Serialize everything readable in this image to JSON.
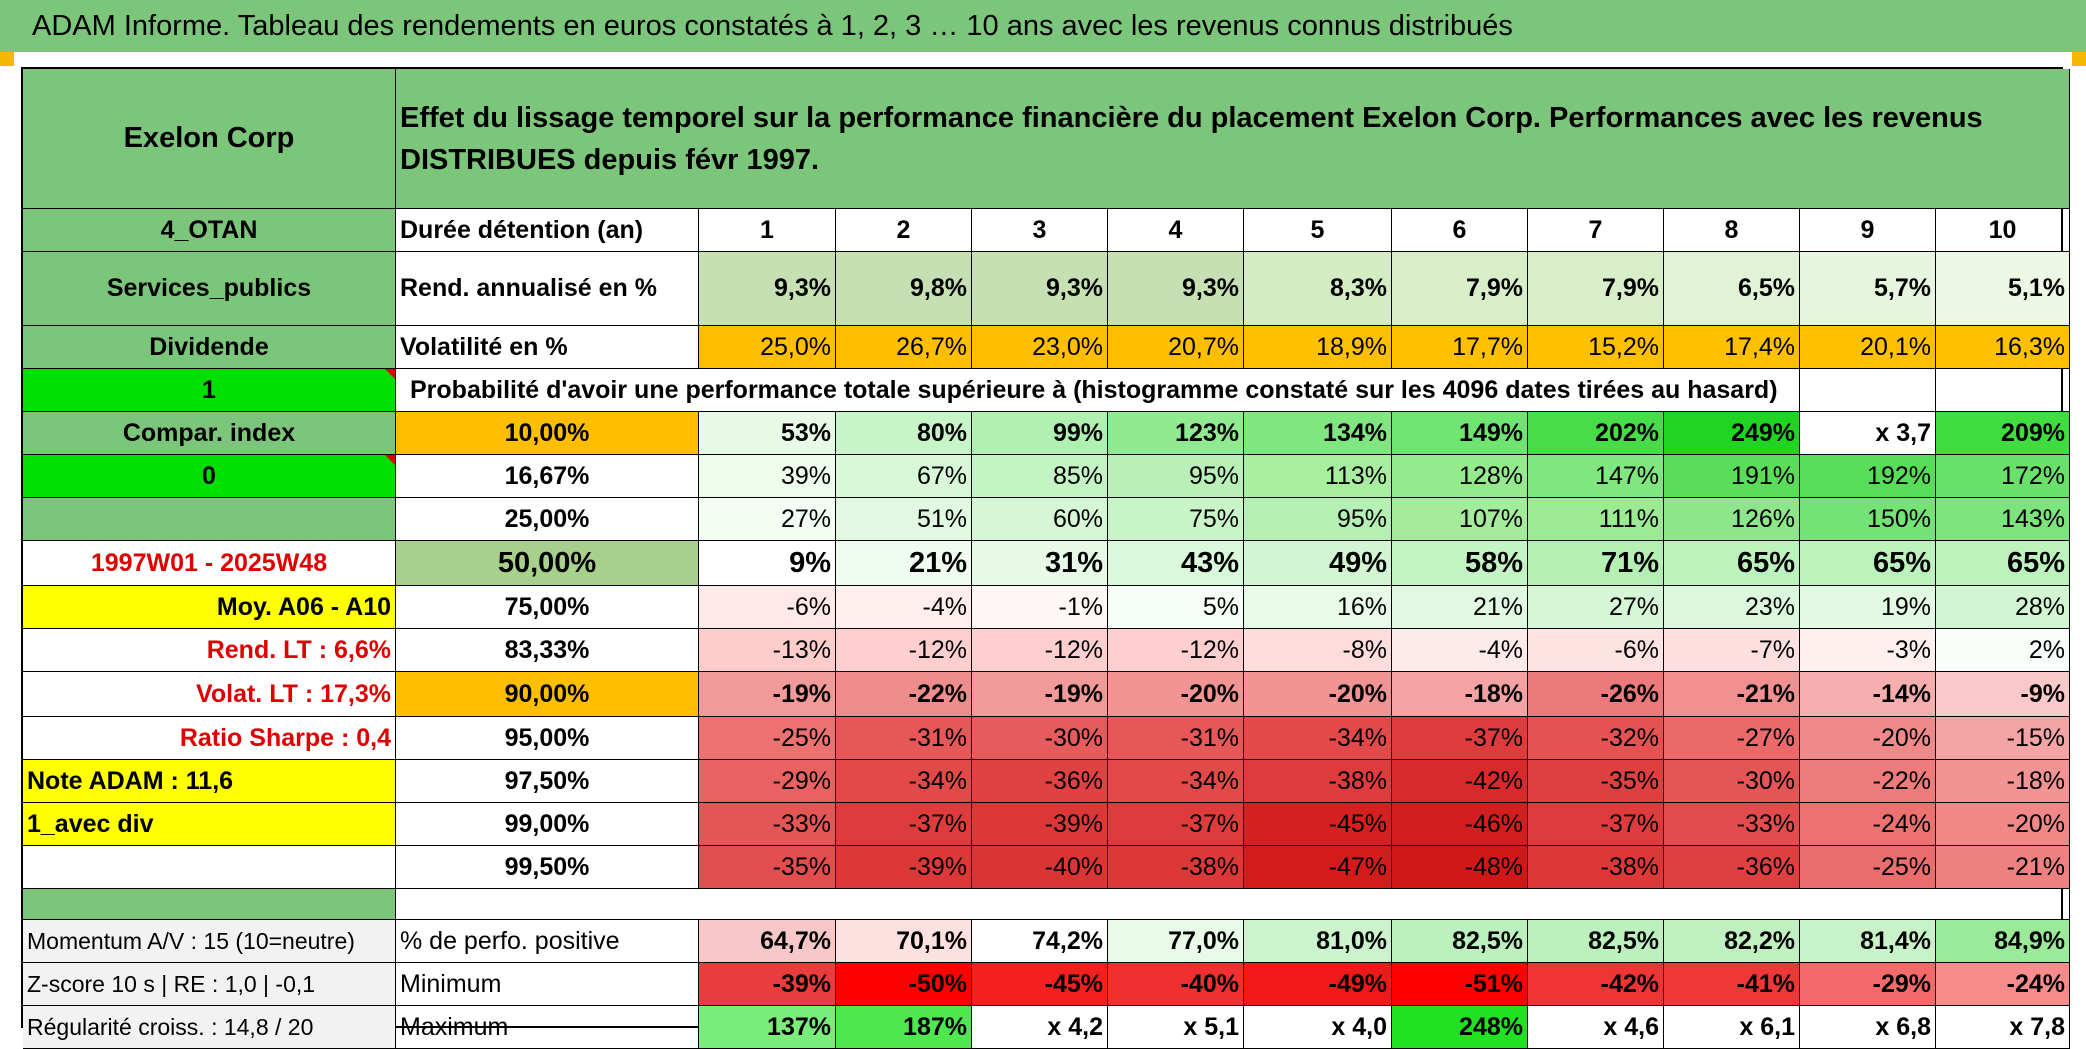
{
  "title": "ADAM Informe. Tableau des rendements en euros constatés à 1, 2, 3 … 10 ans avec les revenus connus distribués",
  "colors": {
    "header_green": "#7cc67c",
    "yellow": "#ffff00",
    "bright_green": "#00e000",
    "orange": "#ffbf00",
    "red_text": "#e00000"
  },
  "left": {
    "company": "Exelon Corp",
    "code": "4_OTAN",
    "sector": "Services_publics",
    "dividend_label": "Dividende",
    "option1": "1",
    "compar_label": "Compar. index",
    "option2": "0",
    "period": "1997W01 - 2025W48",
    "moy": "Moy. A06 - A10",
    "rend_lt": "Rend. LT :   6,6%",
    "volat_lt": "Volat. LT :   17,3%",
    "sharpe": "Ratio Sharpe :   0,4",
    "note": "Note ADAM : 11,6",
    "avec_div": "1_avec div",
    "momentum": "Momentum A/V : 15 (10=neutre)",
    "zscore": "Z-score 10 s | RE : 1,0 | -0,1",
    "regularite": "Régularité croiss. : 14,8 / 20"
  },
  "header_text": "Effet du lissage temporel sur la performance financière du placement Exelon Corp. Performances avec les revenus DISTRIBUES depuis févr 1997.",
  "duree_label": "Durée détention (an)",
  "years": [
    "1",
    "2",
    "3",
    "4",
    "5",
    "6",
    "7",
    "8",
    "9",
    "10"
  ],
  "rend_label": "Rend. annualisé en %",
  "rend": [
    "9,3%",
    "9,8%",
    "9,3%",
    "9,3%",
    "8,3%",
    "7,9%",
    "7,9%",
    "6,5%",
    "5,7%",
    "5,1%"
  ],
  "vol_label": "Volatilité en %",
  "vol": [
    "25,0%",
    "26,7%",
    "23,0%",
    "20,7%",
    "18,9%",
    "17,7%",
    "15,2%",
    "17,4%",
    "20,1%",
    "16,3%"
  ],
  "prob_label": "Probabilité d'avoir une performance totale supérieure à (histogramme constaté sur les 4096 dates tirées au hasard)",
  "prob_rows": [
    {
      "pct": "10,00%",
      "values": [
        "53%",
        "80%",
        "99%",
        "123%",
        "134%",
        "149%",
        "202%",
        "249%",
        "x 3,7",
        "209%"
      ]
    },
    {
      "pct": "16,67%",
      "values": [
        "39%",
        "67%",
        "85%",
        "95%",
        "113%",
        "128%",
        "147%",
        "191%",
        "192%",
        "172%"
      ]
    },
    {
      "pct": "25,00%",
      "values": [
        "27%",
        "51%",
        "60%",
        "75%",
        "95%",
        "107%",
        "111%",
        "126%",
        "150%",
        "143%"
      ]
    },
    {
      "pct": "50,00%",
      "values": [
        "9%",
        "21%",
        "31%",
        "43%",
        "49%",
        "58%",
        "71%",
        "65%",
        "65%",
        "65%"
      ]
    },
    {
      "pct": "75,00%",
      "values": [
        "-6%",
        "-4%",
        "-1%",
        "5%",
        "16%",
        "21%",
        "27%",
        "23%",
        "19%",
        "28%"
      ]
    },
    {
      "pct": "83,33%",
      "values": [
        "-13%",
        "-12%",
        "-12%",
        "-12%",
        "-8%",
        "-4%",
        "-6%",
        "-7%",
        "-3%",
        "2%"
      ]
    },
    {
      "pct": "90,00%",
      "values": [
        "-19%",
        "-22%",
        "-19%",
        "-20%",
        "-20%",
        "-18%",
        "-26%",
        "-21%",
        "-14%",
        "-9%"
      ]
    },
    {
      "pct": "95,00%",
      "values": [
        "-25%",
        "-31%",
        "-30%",
        "-31%",
        "-34%",
        "-37%",
        "-32%",
        "-27%",
        "-20%",
        "-15%"
      ]
    },
    {
      "pct": "97,50%",
      "values": [
        "-29%",
        "-34%",
        "-36%",
        "-34%",
        "-38%",
        "-42%",
        "-35%",
        "-30%",
        "-22%",
        "-18%"
      ]
    },
    {
      "pct": "99,00%",
      "values": [
        "-33%",
        "-37%",
        "-39%",
        "-37%",
        "-45%",
        "-46%",
        "-37%",
        "-33%",
        "-24%",
        "-20%"
      ]
    },
    {
      "pct": "99,50%",
      "values": [
        "-35%",
        "-39%",
        "-40%",
        "-38%",
        "-47%",
        "-48%",
        "-38%",
        "-36%",
        "-25%",
        "-21%"
      ]
    }
  ],
  "pos_label": "% de perfo. positive",
  "pos": [
    "64,7%",
    "70,1%",
    "74,2%",
    "77,0%",
    "81,0%",
    "82,5%",
    "82,5%",
    "82,2%",
    "81,4%",
    "84,9%"
  ],
  "min_label": "Minimum",
  "min": [
    "-39%",
    "-50%",
    "-45%",
    "-40%",
    "-49%",
    "-51%",
    "-42%",
    "-41%",
    "-29%",
    "-24%"
  ],
  "max_label": "Maximum",
  "max": [
    "137%",
    "187%",
    "x 4,2",
    "x 5,1",
    "x 4,0",
    "248%",
    "x 4,6",
    "x 6,1",
    "x 6,8",
    "x 7,8"
  ],
  "fills": {
    "rend": [
      "#c6e0b4",
      "#c6e0b4",
      "#c6e0b4",
      "#c6e0b4",
      "#d4ecc4",
      "#d8eec8",
      "#d8eec8",
      "#e2f2d6",
      "#e8f5de",
      "#ecf7e4"
    ],
    "vol": [
      "#ffbf00",
      "#ffbf00",
      "#ffbf00",
      "#ffbf00",
      "#ffc000",
      "#ffc000",
      "#ffc000",
      "#ffc000",
      "#ffc000",
      "#ffc000"
    ],
    "prob": [
      [
        "#e6fae6",
        "#c8f5c8",
        "#b0f0b0",
        "#90ea90",
        "#80e680",
        "#70e470",
        "#48dc48",
        "#22d422",
        "#ffffff",
        "#40dc40"
      ],
      [
        "#eefcee",
        "#d8f8d8",
        "#c4f4c4",
        "#b8f0b8",
        "#a8ee9f",
        "#94ea8c",
        "#80e680",
        "#5ade5a",
        "#58dd58",
        "#6ae26a"
      ],
      [
        "#f4fdf4",
        "#e0f9e0",
        "#d6f7d6",
        "#c8f4c8",
        "#b4f0b4",
        "#a4ec9c",
        "#9cea94",
        "#8ee68a",
        "#74e274",
        "#7ce47c"
      ],
      [
        "#ffffff",
        "#f0fcf0",
        "#e6fae6",
        "#daf8da",
        "#d2f6d2",
        "#c4f4c4",
        "#b4f0b4",
        "#bcf2bc",
        "#bcf2bc",
        "#bcf2bc"
      ],
      [
        "#ffe8e8",
        "#ffeeee",
        "#fff6f6",
        "#f6fdf6",
        "#e8fae8",
        "#e0f9e0",
        "#d6f7d6",
        "#dcf8dc",
        "#e2f9e2",
        "#d2f6d2"
      ],
      [
        "#ffcccc",
        "#ffcfcf",
        "#ffcfcf",
        "#ffcfcf",
        "#ffdddd",
        "#ffeaea",
        "#ffe2e2",
        "#ffdfdf",
        "#fff0f0",
        "#fafefa"
      ],
      [
        "#f29a9a",
        "#ef8c8c",
        "#f29a9a",
        "#f29494",
        "#f29494",
        "#f4a2a2",
        "#ec7a7a",
        "#f09090",
        "#f6aeae",
        "#fac8c8"
      ],
      [
        "#ec7272",
        "#e65858",
        "#e65c5c",
        "#e65858",
        "#e24a4a",
        "#de3c3c",
        "#e45252",
        "#ea6a6a",
        "#f08a8a",
        "#f4a4a4"
      ],
      [
        "#e86262",
        "#e24a4a",
        "#e04242",
        "#e24a4a",
        "#de3c3c",
        "#d82a2a",
        "#de4040",
        "#e45656",
        "#ee7c7c",
        "#f29494"
      ],
      [
        "#e45656",
        "#de3c3c",
        "#dc3838",
        "#de3c3c",
        "#d42020",
        "#d21e1e",
        "#de3c3c",
        "#e24c4c",
        "#ec7272",
        "#f08888"
      ],
      [
        "#e24e4e",
        "#dc3838",
        "#da3434",
        "#dc3838",
        "#d21c1c",
        "#d01818",
        "#dc3838",
        "#de4040",
        "#ea6e6e",
        "#ee8080"
      ]
    ],
    "pos": [
      "#f8c8c8",
      "#fde0e0",
      "#ffffff",
      "#e8fae8",
      "#ccf4cc",
      "#bcf0bc",
      "#bcf0bc",
      "#c0f0c0",
      "#c8f2c8",
      "#9aea9a"
    ],
    "min": [
      "#ea3c3c",
      "#ff0000",
      "#f42020",
      "#ee3030",
      "#f01818",
      "#ff0000",
      "#ee3434",
      "#ee3838",
      "#f46a6a",
      "#f88c8c"
    ],
    "max": [
      "#7aec7a",
      "#50e650",
      "#ffffff",
      "#ffffff",
      "#ffffff",
      "#22e022",
      "#ffffff",
      "#ffffff",
      "#ffffff",
      "#ffffff"
    ]
  }
}
